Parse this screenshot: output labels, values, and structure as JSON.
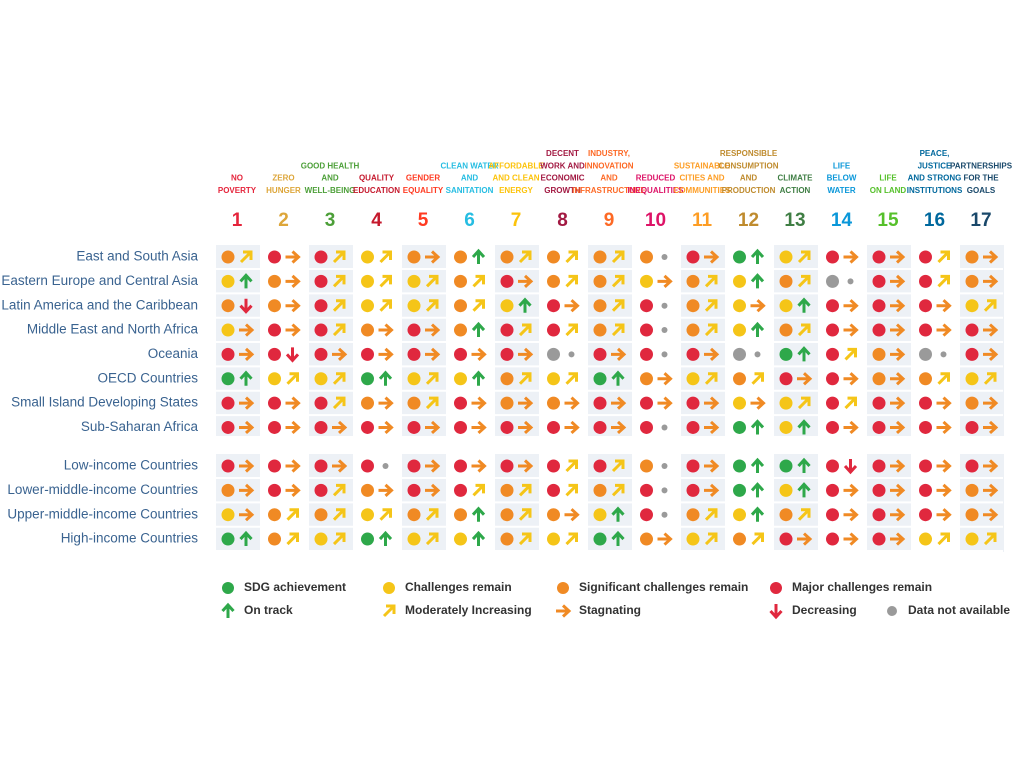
{
  "goals": [
    {
      "number": "1",
      "label": [
        "NO",
        "POVERTY"
      ],
      "color": "#e5243b"
    },
    {
      "number": "2",
      "label": [
        "ZERO",
        "HUNGER"
      ],
      "color": "#dda63a"
    },
    {
      "number": "3",
      "label": [
        "GOOD HEALTH",
        "AND",
        "WELL-BEING"
      ],
      "color": "#4c9f38"
    },
    {
      "number": "4",
      "label": [
        "QUALITY",
        "EDUCATION"
      ],
      "color": "#c5192d"
    },
    {
      "number": "5",
      "label": [
        "GENDER",
        "EQUALITY"
      ],
      "color": "#ff3a21"
    },
    {
      "number": "6",
      "label": [
        "CLEAN WATER",
        "AND",
        "SANITATION"
      ],
      "color": "#26bde2"
    },
    {
      "number": "7",
      "label": [
        "AFFORDABLE",
        "AND CLEAN",
        "ENERGY"
      ],
      "color": "#fcc30b"
    },
    {
      "number": "8",
      "label": [
        "DECENT",
        "WORK AND",
        "ECONOMIC",
        "GROWTH"
      ],
      "color": "#a21942"
    },
    {
      "number": "9",
      "label": [
        "INDUSTRY,",
        "INNOVATION",
        "AND",
        "INFRASTRUCTURE"
      ],
      "color": "#fd6925"
    },
    {
      "number": "10",
      "label": [
        "REDUCED",
        "INEQUALITIES"
      ],
      "color": "#dd1367"
    },
    {
      "number": "11",
      "label": [
        "SUSTAINABLE",
        "CITIES AND",
        "COMMUNITIES"
      ],
      "color": "#fd9d24"
    },
    {
      "number": "12",
      "label": [
        "RESPONSIBLE",
        "CONSUMPTION",
        "AND",
        "PRODUCTION"
      ],
      "color": "#bf8b2e"
    },
    {
      "number": "13",
      "label": [
        "CLIMATE",
        "ACTION"
      ],
      "color": "#3f7e44"
    },
    {
      "number": "14",
      "label": [
        "LIFE",
        "BELOW",
        "WATER"
      ],
      "color": "#0a97d9"
    },
    {
      "number": "15",
      "label": [
        "LIFE",
        "ON LAND"
      ],
      "color": "#56c02b"
    },
    {
      "number": "16",
      "label": [
        "PEACE,",
        "JUSTICE",
        "AND STRONG",
        "INSTITUTIONS"
      ],
      "color": "#00689d"
    },
    {
      "number": "17",
      "label": [
        "PARTNERSHIPS",
        "FOR THE",
        "GOALS"
      ],
      "color": "#19486a"
    }
  ],
  "legend": [
    {
      "label": "SDG achievement",
      "shape": "dot",
      "color": "#2ea84a"
    },
    {
      "label": "Challenges remain",
      "shape": "dot",
      "color": "#f5c518"
    },
    {
      "label": "Significant challenges remain",
      "shape": "dot",
      "color": "#f08a24"
    },
    {
      "label": "Major challenges remain",
      "shape": "dot",
      "color": "#e0283e"
    },
    {
      "label": "On track",
      "shape": "up",
      "color": "#2ea84a"
    },
    {
      "label": "Moderately Increasing",
      "shape": "diagonal",
      "color": "#f5c518"
    },
    {
      "label": "Stagnating",
      "shape": "right",
      "color": "#f08a24"
    },
    {
      "label": "Decreasing",
      "shape": "down",
      "color": "#e0283e"
    },
    {
      "label": "Data not available",
      "shape": "dot",
      "color": "#9a9a9a"
    }
  ],
  "groups": [
    {
      "rows": [
        {
          "label": "East and South Asia",
          "cells": [
            [
              2,
              5
            ],
            [
              3,
              6
            ],
            [
              3,
              5
            ],
            [
              1,
              5
            ],
            [
              2,
              6
            ],
            [
              2,
              4
            ],
            [
              2,
              5
            ],
            [
              2,
              5
            ],
            [
              2,
              5
            ],
            [
              2,
              8
            ],
            [
              3,
              6
            ],
            [
              0,
              4
            ],
            [
              1,
              5
            ],
            [
              3,
              6
            ],
            [
              3,
              6
            ],
            [
              3,
              5
            ],
            [
              2,
              6
            ]
          ]
        },
        {
          "label": "Eastern Europe and Central Asia",
          "cells": [
            [
              1,
              4
            ],
            [
              2,
              6
            ],
            [
              3,
              5
            ],
            [
              1,
              5
            ],
            [
              1,
              5
            ],
            [
              2,
              5
            ],
            [
              3,
              6
            ],
            [
              2,
              5
            ],
            [
              2,
              5
            ],
            [
              1,
              6
            ],
            [
              2,
              5
            ],
            [
              1,
              4
            ],
            [
              2,
              5
            ],
            [
              8,
              8
            ],
            [
              3,
              6
            ],
            [
              3,
              5
            ],
            [
              2,
              6
            ]
          ]
        },
        {
          "label": "Latin America and the Caribbean",
          "cells": [
            [
              2,
              7
            ],
            [
              2,
              6
            ],
            [
              3,
              5
            ],
            [
              1,
              5
            ],
            [
              1,
              5
            ],
            [
              2,
              5
            ],
            [
              1,
              4
            ],
            [
              3,
              6
            ],
            [
              2,
              5
            ],
            [
              3,
              8
            ],
            [
              2,
              5
            ],
            [
              1,
              6
            ],
            [
              1,
              4
            ],
            [
              3,
              6
            ],
            [
              3,
              6
            ],
            [
              3,
              6
            ],
            [
              1,
              5
            ]
          ]
        },
        {
          "label": "Middle East and North Africa",
          "cells": [
            [
              1,
              6
            ],
            [
              3,
              6
            ],
            [
              3,
              5
            ],
            [
              2,
              6
            ],
            [
              3,
              6
            ],
            [
              2,
              4
            ],
            [
              3,
              5
            ],
            [
              3,
              5
            ],
            [
              2,
              5
            ],
            [
              3,
              8
            ],
            [
              2,
              5
            ],
            [
              1,
              4
            ],
            [
              2,
              5
            ],
            [
              3,
              6
            ],
            [
              3,
              6
            ],
            [
              3,
              6
            ],
            [
              3,
              6
            ]
          ]
        },
        {
          "label": "Oceania",
          "cells": [
            [
              3,
              6
            ],
            [
              3,
              7
            ],
            [
              3,
              6
            ],
            [
              3,
              6
            ],
            [
              3,
              6
            ],
            [
              3,
              6
            ],
            [
              3,
              6
            ],
            [
              8,
              8
            ],
            [
              3,
              6
            ],
            [
              3,
              8
            ],
            [
              3,
              6
            ],
            [
              8,
              8
            ],
            [
              0,
              4
            ],
            [
              3,
              5
            ],
            [
              2,
              6
            ],
            [
              8,
              8
            ],
            [
              3,
              6
            ]
          ]
        },
        {
          "label": "OECD Countries",
          "cells": [
            [
              0,
              4
            ],
            [
              1,
              5
            ],
            [
              1,
              5
            ],
            [
              0,
              4
            ],
            [
              1,
              5
            ],
            [
              1,
              4
            ],
            [
              2,
              5
            ],
            [
              1,
              5
            ],
            [
              0,
              4
            ],
            [
              2,
              6
            ],
            [
              1,
              5
            ],
            [
              2,
              5
            ],
            [
              3,
              6
            ],
            [
              3,
              6
            ],
            [
              2,
              6
            ],
            [
              2,
              5
            ],
            [
              1,
              5
            ]
          ]
        },
        {
          "label": "Small Island Developing States",
          "cells": [
            [
              3,
              6
            ],
            [
              3,
              6
            ],
            [
              3,
              5
            ],
            [
              2,
              6
            ],
            [
              2,
              5
            ],
            [
              3,
              6
            ],
            [
              2,
              6
            ],
            [
              2,
              6
            ],
            [
              3,
              6
            ],
            [
              3,
              6
            ],
            [
              3,
              6
            ],
            [
              1,
              6
            ],
            [
              1,
              5
            ],
            [
              3,
              5
            ],
            [
              3,
              6
            ],
            [
              3,
              6
            ],
            [
              2,
              6
            ]
          ]
        },
        {
          "label": "Sub-Saharan Africa",
          "cells": [
            [
              3,
              6
            ],
            [
              3,
              6
            ],
            [
              3,
              6
            ],
            [
              3,
              6
            ],
            [
              3,
              6
            ],
            [
              3,
              6
            ],
            [
              3,
              6
            ],
            [
              3,
              6
            ],
            [
              3,
              6
            ],
            [
              3,
              8
            ],
            [
              3,
              6
            ],
            [
              0,
              4
            ],
            [
              1,
              4
            ],
            [
              3,
              6
            ],
            [
              3,
              6
            ],
            [
              3,
              6
            ],
            [
              3,
              6
            ]
          ]
        }
      ]
    },
    {
      "rows": [
        {
          "label": "Low-income Countries",
          "cells": [
            [
              3,
              6
            ],
            [
              3,
              6
            ],
            [
              3,
              6
            ],
            [
              3,
              8
            ],
            [
              3,
              6
            ],
            [
              3,
              6
            ],
            [
              3,
              6
            ],
            [
              3,
              5
            ],
            [
              3,
              5
            ],
            [
              2,
              8
            ],
            [
              3,
              6
            ],
            [
              0,
              4
            ],
            [
              0,
              4
            ],
            [
              3,
              7
            ],
            [
              3,
              6
            ],
            [
              3,
              6
            ],
            [
              3,
              6
            ]
          ]
        },
        {
          "label": "Lower-middle-income Countries",
          "cells": [
            [
              2,
              6
            ],
            [
              3,
              6
            ],
            [
              3,
              5
            ],
            [
              2,
              6
            ],
            [
              3,
              6
            ],
            [
              3,
              5
            ],
            [
              2,
              5
            ],
            [
              3,
              5
            ],
            [
              2,
              5
            ],
            [
              3,
              8
            ],
            [
              3,
              6
            ],
            [
              0,
              4
            ],
            [
              1,
              4
            ],
            [
              3,
              6
            ],
            [
              3,
              6
            ],
            [
              3,
              6
            ],
            [
              2,
              6
            ]
          ]
        },
        {
          "label": "Upper-middle-income Countries",
          "cells": [
            [
              1,
              6
            ],
            [
              2,
              5
            ],
            [
              2,
              5
            ],
            [
              1,
              5
            ],
            [
              2,
              5
            ],
            [
              2,
              4
            ],
            [
              2,
              5
            ],
            [
              2,
              6
            ],
            [
              1,
              4
            ],
            [
              3,
              8
            ],
            [
              2,
              5
            ],
            [
              1,
              4
            ],
            [
              2,
              5
            ],
            [
              3,
              6
            ],
            [
              3,
              6
            ],
            [
              3,
              6
            ],
            [
              2,
              6
            ]
          ]
        },
        {
          "label": "High-income Countries",
          "cells": [
            [
              0,
              4
            ],
            [
              2,
              5
            ],
            [
              1,
              5
            ],
            [
              0,
              4
            ],
            [
              1,
              5
            ],
            [
              1,
              4
            ],
            [
              2,
              5
            ],
            [
              1,
              5
            ],
            [
              0,
              4
            ],
            [
              2,
              6
            ],
            [
              1,
              5
            ],
            [
              2,
              5
            ],
            [
              3,
              6
            ],
            [
              3,
              6
            ],
            [
              3,
              6
            ],
            [
              1,
              5
            ],
            [
              1,
              5
            ]
          ]
        }
      ]
    }
  ]
}
